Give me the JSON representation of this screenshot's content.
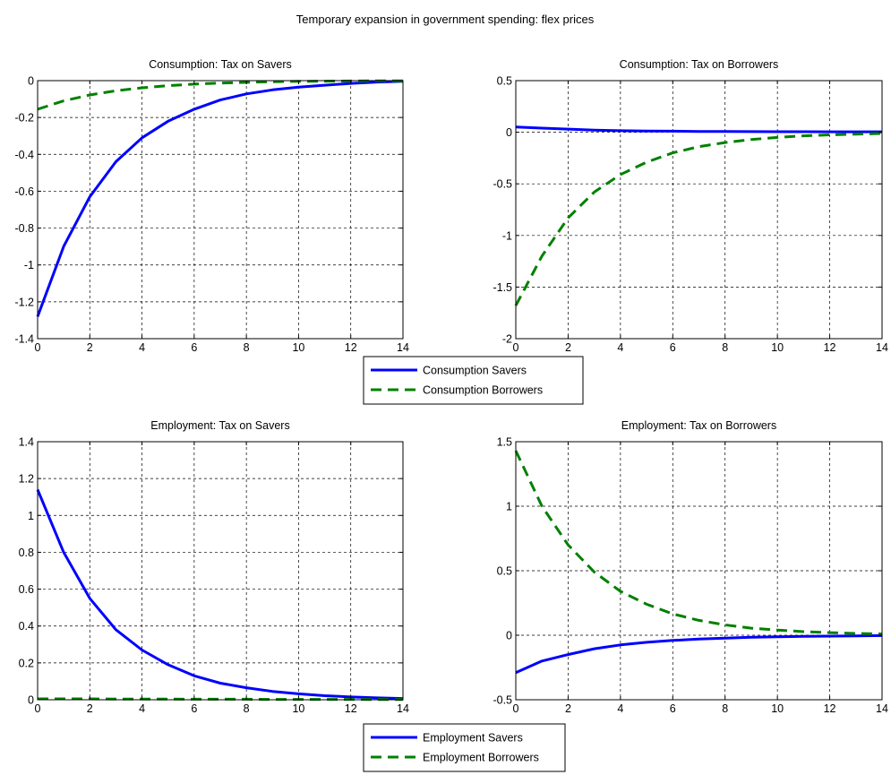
{
  "figure": {
    "title": "Temporary expansion in government spending: flex prices"
  },
  "colors": {
    "savers": "#0000ff",
    "borrowers": "#008000",
    "grid": "#000000",
    "axes": "#000000"
  },
  "legends": [
    {
      "entries": [
        {
          "label": "Consumption Savers",
          "series": "savers"
        },
        {
          "label": "Consumption Borrowers",
          "series": "borrowers"
        }
      ]
    },
    {
      "entries": [
        {
          "label": "Employment Savers",
          "series": "savers"
        },
        {
          "label": "Employment Borrowers",
          "series": "borrowers"
        }
      ]
    }
  ],
  "chart_data": [
    {
      "type": "line",
      "title": "Consumption: Tax on Savers",
      "xlim": [
        0,
        14
      ],
      "ylim": [
        -1.4,
        0
      ],
      "grid": true,
      "xticks": [
        "0",
        "2",
        "4",
        "6",
        "8",
        "10",
        "12",
        "14"
      ],
      "yticks": [
        "-1.4",
        "-1.2",
        "-1",
        "-0.8",
        "-0.6",
        "-0.4",
        "-0.2",
        "0"
      ],
      "x": [
        0,
        1,
        2,
        3,
        4,
        5,
        6,
        7,
        8,
        9,
        10,
        11,
        12,
        13,
        14
      ],
      "series": [
        {
          "name": "Consumption Savers",
          "style": "solid",
          "values": [
            -1.28,
            -0.9,
            -0.63,
            -0.44,
            -0.31,
            -0.22,
            -0.155,
            -0.105,
            -0.072,
            -0.05,
            -0.035,
            -0.025,
            -0.015,
            -0.008,
            -0.004
          ]
        },
        {
          "name": "Consumption Borrowers",
          "style": "dashed",
          "values": [
            -0.155,
            -0.11,
            -0.078,
            -0.055,
            -0.039,
            -0.027,
            -0.019,
            -0.013,
            -0.009,
            -0.006,
            -0.004,
            -0.003,
            -0.002,
            -0.001,
            -0.001
          ]
        }
      ]
    },
    {
      "type": "line",
      "title": "Consumption: Tax on Borrowers",
      "xlim": [
        0,
        14
      ],
      "ylim": [
        -2,
        0.5
      ],
      "grid": true,
      "xticks": [
        "0",
        "2",
        "4",
        "6",
        "8",
        "10",
        "12",
        "14"
      ],
      "yticks": [
        "-2",
        "-1.5",
        "-1",
        "-0.5",
        "0",
        "0.5"
      ],
      "x": [
        0,
        1,
        2,
        3,
        4,
        5,
        6,
        7,
        8,
        9,
        10,
        11,
        12,
        13,
        14
      ],
      "series": [
        {
          "name": "Consumption Savers",
          "style": "solid",
          "values": [
            0.05,
            0.04,
            0.03,
            0.02,
            0.015,
            0.012,
            0.01,
            0.008,
            0.007,
            0.006,
            0.005,
            0.005,
            0.004,
            0.004,
            0.004
          ]
        },
        {
          "name": "Consumption Borrowers",
          "style": "dashed",
          "values": [
            -1.68,
            -1.2,
            -0.83,
            -0.58,
            -0.41,
            -0.29,
            -0.2,
            -0.14,
            -0.1,
            -0.07,
            -0.05,
            -0.035,
            -0.025,
            -0.018,
            -0.012
          ]
        }
      ]
    },
    {
      "type": "line",
      "title": "Employment: Tax on Savers",
      "xlim": [
        0,
        14
      ],
      "ylim": [
        0,
        1.4
      ],
      "grid": true,
      "xticks": [
        "0",
        "2",
        "4",
        "6",
        "8",
        "10",
        "12",
        "14"
      ],
      "yticks": [
        "0",
        "0.2",
        "0.4",
        "0.6",
        "0.8",
        "1",
        "1.2",
        "1.4"
      ],
      "x": [
        0,
        1,
        2,
        3,
        4,
        5,
        6,
        7,
        8,
        9,
        10,
        11,
        12,
        13,
        14
      ],
      "series": [
        {
          "name": "Employment Savers",
          "style": "solid",
          "values": [
            1.14,
            0.8,
            0.55,
            0.38,
            0.27,
            0.19,
            0.13,
            0.09,
            0.065,
            0.045,
            0.032,
            0.022,
            0.015,
            0.01,
            0.007
          ]
        },
        {
          "name": "Employment Borrowers",
          "style": "dashed",
          "values": [
            0.005,
            0.005,
            0.005,
            0.004,
            0.004,
            0.004,
            0.003,
            0.003,
            0.003,
            0.002,
            0.002,
            0.002,
            0.002,
            0.001,
            0.001
          ]
        }
      ]
    },
    {
      "type": "line",
      "title": "Employment: Tax on Borrowers",
      "xlim": [
        0,
        14
      ],
      "ylim": [
        -0.5,
        1.5
      ],
      "grid": true,
      "xticks": [
        "0",
        "2",
        "4",
        "6",
        "8",
        "10",
        "12",
        "14"
      ],
      "yticks": [
        "-0.5",
        "0",
        "0.5",
        "1",
        "1.5"
      ],
      "x": [
        0,
        1,
        2,
        3,
        4,
        5,
        6,
        7,
        8,
        9,
        10,
        11,
        12,
        13,
        14
      ],
      "series": [
        {
          "name": "Employment Savers",
          "style": "solid",
          "values": [
            -0.29,
            -0.2,
            -0.15,
            -0.105,
            -0.075,
            -0.055,
            -0.04,
            -0.03,
            -0.022,
            -0.016,
            -0.012,
            -0.009,
            -0.007,
            -0.005,
            -0.003
          ]
        },
        {
          "name": "Employment Borrowers",
          "style": "dashed",
          "values": [
            1.43,
            1.0,
            0.7,
            0.49,
            0.34,
            0.24,
            0.165,
            0.115,
            0.08,
            0.055,
            0.04,
            0.028,
            0.02,
            0.014,
            0.01
          ]
        }
      ]
    }
  ]
}
